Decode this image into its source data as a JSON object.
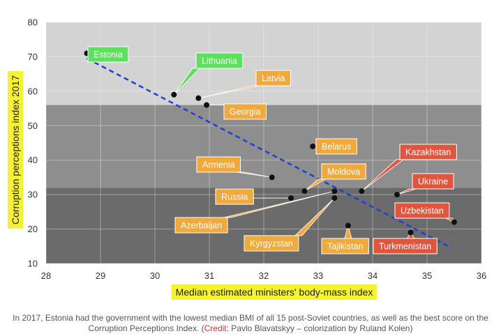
{
  "chart_data": {
    "type": "scatter",
    "xlabel": "Median estimated ministers' body-mass index",
    "ylabel": "Corruption perceptions index 2017",
    "xlim": [
      28,
      36
    ],
    "ylim": [
      10,
      80
    ],
    "xticks": [
      "28",
      "29",
      "30",
      "31",
      "32",
      "33",
      "34",
      "35",
      "36"
    ],
    "yticks": [
      "10",
      "20",
      "30",
      "40",
      "50",
      "60",
      "70",
      "80"
    ],
    "grid": true,
    "background_bands": [
      {
        "from": 56,
        "to": 80,
        "color": "#d3d3d3"
      },
      {
        "from": 32,
        "to": 56,
        "color": "#8e8e8e"
      },
      {
        "from": 10,
        "to": 32,
        "color": "#6b6b6b"
      }
    ],
    "trendline": {
      "x": [
        28.75,
        35.45
      ],
      "y": [
        69.5,
        14.5
      ],
      "color": "#1f3fd6",
      "style": "dashed"
    },
    "points": [
      {
        "label": "Estonia",
        "x": 28.75,
        "y": 71,
        "color": "#5de05d",
        "text_color": "#ffffff"
      },
      {
        "label": "Lithuania",
        "x": 30.35,
        "y": 59,
        "color": "#5de05d",
        "text_color": "#ffffff"
      },
      {
        "label": "Latvia",
        "x": 30.8,
        "y": 58,
        "color": "#f0a93a",
        "text_color": "#ffffff"
      },
      {
        "label": "Georgia",
        "x": 30.95,
        "y": 56,
        "color": "#f0a93a",
        "text_color": "#ffffff"
      },
      {
        "label": "Belarus",
        "x": 32.9,
        "y": 44,
        "color": "#f0a93a",
        "text_color": "#ffffff"
      },
      {
        "label": "Armenia",
        "x": 32.15,
        "y": 35,
        "color": "#f0a93a",
        "text_color": "#ffffff"
      },
      {
        "label": "Moldova",
        "x": 32.75,
        "y": 31,
        "color": "#f0a93a",
        "text_color": "#ffffff"
      },
      {
        "label": "Russia",
        "x": 32.5,
        "y": 29,
        "color": "#f0a93a",
        "text_color": "#ffffff"
      },
      {
        "label": "Azerbaijan",
        "x": 33.3,
        "y": 31,
        "color": "#f0a93a",
        "text_color": "#ffffff"
      },
      {
        "label": "Kyrgyzstan",
        "x": 33.3,
        "y": 29,
        "color": "#f0a93a",
        "text_color": "#ffffff"
      },
      {
        "label": "Kazakhstan",
        "x": 33.8,
        "y": 31,
        "color": "#e0553d",
        "text_color": "#ffffff"
      },
      {
        "label": "Tajikistan",
        "x": 33.55,
        "y": 21,
        "color": "#f0a93a",
        "text_color": "#ffffff"
      },
      {
        "label": "Ukraine",
        "x": 34.45,
        "y": 30,
        "color": "#e0553d",
        "text_color": "#ffffff"
      },
      {
        "label": "Uzbekistan",
        "x": 35.5,
        "y": 22,
        "color": "#e0553d",
        "text_color": "#ffffff"
      },
      {
        "label": "Turkmenistan",
        "x": 34.7,
        "y": 19,
        "color": "#e0553d",
        "text_color": "#ffffff"
      }
    ]
  },
  "caption": {
    "text": "In 2017, Estonia had the government with the lowest median BMI of all 15 post-Soviet countries, as well as the best score on the Corruption Perceptions Index. (",
    "credit_link": "Credit",
    "credit_rest": ": Pavlo Blavatskyy – colorization by Ruland Kolen)"
  },
  "colors": {
    "axis_title_highlight": "#f5f232",
    "point": "#111111"
  }
}
